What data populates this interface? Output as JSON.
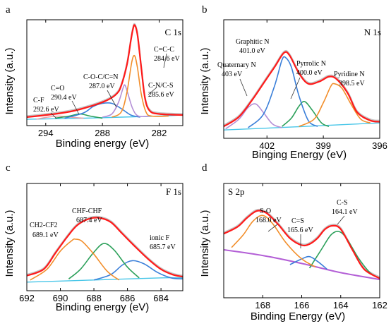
{
  "chart_data": [
    {
      "type": "line",
      "panel_letter": "a",
      "title": "C 1s",
      "xlabel": "Binding energy (eV)",
      "ylabel": "Intensity (a.u.)",
      "xlim": [
        296,
        279.5
      ],
      "ylim": [
        0,
        1
      ],
      "x_ticks": [
        294,
        288,
        282
      ],
      "x_tick_labels": [
        "294",
        "288",
        "282"
      ],
      "background": [
        [
          296,
          0.06
        ],
        [
          290,
          0.07
        ],
        [
          286,
          0.08
        ],
        [
          282,
          0.09
        ],
        [
          279.5,
          0.1
        ]
      ],
      "series": [
        {
          "color": "#ff1a1a",
          "values": [
            [
              296,
              0.08
            ],
            [
              293,
              0.11
            ],
            [
              291,
              0.14
            ],
            [
              289,
              0.19
            ],
            [
              287.5,
              0.24
            ],
            [
              286.5,
              0.3
            ],
            [
              286,
              0.38
            ],
            [
              285.4,
              0.58
            ],
            [
              285,
              0.8
            ],
            [
              284.8,
              0.9
            ],
            [
              284.6,
              0.95
            ],
            [
              284.3,
              0.86
            ],
            [
              283.9,
              0.55
            ],
            [
              283.5,
              0.26
            ],
            [
              283,
              0.14
            ],
            [
              282,
              0.11
            ],
            [
              279.5,
              0.1
            ]
          ]
        },
        {
          "color": "#f28e2b",
          "values": [
            [
              287,
              0.08
            ],
            [
              286,
              0.13
            ],
            [
              285.4,
              0.32
            ],
            [
              284.9,
              0.6
            ],
            [
              284.6,
              0.66
            ],
            [
              284.3,
              0.55
            ],
            [
              283.9,
              0.3
            ],
            [
              283.4,
              0.13
            ],
            [
              282.8,
              0.09
            ],
            [
              281,
              0.09
            ]
          ]
        },
        {
          "color": "#b48fd6",
          "values": [
            [
              288,
              0.08
            ],
            [
              287,
              0.11
            ],
            [
              286.3,
              0.22
            ],
            [
              285.8,
              0.36
            ],
            [
              285.6,
              0.38
            ],
            [
              285.3,
              0.3
            ],
            [
              284.8,
              0.16
            ],
            [
              284.2,
              0.09
            ],
            [
              283,
              0.09
            ]
          ]
        },
        {
          "color": "#3a7fd9",
          "values": [
            [
              292,
              0.07
            ],
            [
              290,
              0.12
            ],
            [
              289,
              0.18
            ],
            [
              288,
              0.21
            ],
            [
              287,
              0.21
            ],
            [
              286,
              0.16
            ],
            [
              285,
              0.1
            ],
            [
              284,
              0.08
            ]
          ]
        },
        {
          "color": "#2ca05a",
          "values": [
            [
              293,
              0.07
            ],
            [
              291.5,
              0.09
            ],
            [
              290.4,
              0.11
            ],
            [
              289.3,
              0.09
            ],
            [
              288,
              0.07
            ]
          ]
        },
        {
          "color": "#e8a0a8",
          "values": [
            [
              295,
              0.06
            ],
            [
              293.8,
              0.08
            ],
            [
              292.6,
              0.09
            ],
            [
              291.4,
              0.08
            ],
            [
              290,
              0.07
            ]
          ]
        }
      ],
      "annotations": [
        {
          "label": "C=C-C",
          "value": "284.6 eV"
        },
        {
          "label": "C-N/C-S",
          "value": "285.6 eV"
        },
        {
          "label": "C-O-C/C=N",
          "value": "287.0 eV"
        },
        {
          "label": "C=O",
          "value": "290.4 eV"
        },
        {
          "label": "C-F",
          "value": "292.6 eV"
        }
      ]
    },
    {
      "type": "line",
      "panel_letter": "b",
      "title": "N 1s",
      "xlabel": "Binging Energy (eV)",
      "ylabel": "Intensity (a.u.)",
      "xlim": [
        404.3,
        396
      ],
      "ylim": [
        0,
        1
      ],
      "x_ticks": [
        402,
        399,
        396
      ],
      "x_tick_labels": [
        "402",
        "399",
        "396"
      ],
      "background": [
        [
          404.3,
          0.07
        ],
        [
          400,
          0.1
        ],
        [
          396,
          0.13
        ]
      ],
      "series": [
        {
          "color": "#ff1a1a",
          "values": [
            [
              404.3,
              0.1
            ],
            [
              403.5,
              0.18
            ],
            [
              402.8,
              0.32
            ],
            [
              402.2,
              0.46
            ],
            [
              401.6,
              0.6
            ],
            [
              401.1,
              0.72
            ],
            [
              400.8,
              0.7
            ],
            [
              400.3,
              0.55
            ],
            [
              399.8,
              0.46
            ],
            [
              399.2,
              0.48
            ],
            [
              398.7,
              0.52
            ],
            [
              398.3,
              0.5
            ],
            [
              397.7,
              0.38
            ],
            [
              397.2,
              0.22
            ],
            [
              396.5,
              0.15
            ],
            [
              396,
              0.14
            ]
          ]
        },
        {
          "color": "#f28e2b",
          "values": [
            [
              400.3,
              0.1
            ],
            [
              399.5,
              0.16
            ],
            [
              399,
              0.3
            ],
            [
              398.6,
              0.44
            ],
            [
              398.4,
              0.46
            ],
            [
              398,
              0.42
            ],
            [
              397.5,
              0.28
            ],
            [
              397,
              0.16
            ],
            [
              396.5,
              0.13
            ]
          ]
        },
        {
          "color": "#3a7fd9",
          "values": [
            [
              403,
              0.09
            ],
            [
              402.2,
              0.2
            ],
            [
              401.6,
              0.44
            ],
            [
              401.2,
              0.66
            ],
            [
              401,
              0.68
            ],
            [
              400.7,
              0.6
            ],
            [
              400.3,
              0.36
            ],
            [
              399.8,
              0.15
            ],
            [
              399.3,
              0.1
            ]
          ]
        },
        {
          "color": "#2ca05a",
          "values": [
            [
              401.2,
              0.1
            ],
            [
              400.7,
              0.17
            ],
            [
              400.3,
              0.27
            ],
            [
              400,
              0.31
            ],
            [
              399.6,
              0.24
            ],
            [
              399.1,
              0.13
            ],
            [
              398.7,
              0.1
            ]
          ]
        },
        {
          "color": "#b48fd6",
          "values": [
            [
              404.2,
              0.08
            ],
            [
              403.5,
              0.16
            ],
            [
              403,
              0.26
            ],
            [
              402.6,
              0.29
            ],
            [
              402.2,
              0.22
            ],
            [
              401.7,
              0.12
            ],
            [
              401.2,
              0.09
            ]
          ]
        }
      ],
      "annotations": [
        {
          "label": "Graphitic N",
          "value": "401.0 eV"
        },
        {
          "label": "Quaternary N",
          "value": "403 eV"
        },
        {
          "label": "Pyrrolic N",
          "value": "400.0 eV"
        },
        {
          "label": "Pyridine N",
          "value": "398.5 eV"
        }
      ]
    },
    {
      "type": "line",
      "panel_letter": "c",
      "title": "F 1s",
      "xlabel": "Binding energy (eV)",
      "ylabel": "Intensity (a.u.)",
      "xlim": [
        692,
        682.7
      ],
      "ylim": [
        0,
        1
      ],
      "x_ticks": [
        692,
        690,
        688,
        686,
        684
      ],
      "x_tick_labels": [
        "692",
        "690",
        "688",
        "686",
        "684"
      ],
      "background": [
        [
          692,
          0.08
        ],
        [
          688,
          0.1
        ],
        [
          684,
          0.12
        ],
        [
          682.7,
          0.12
        ]
      ],
      "series": [
        {
          "color": "#ff1a1a",
          "values": [
            [
              692,
              0.14
            ],
            [
              691,
              0.2
            ],
            [
              690.3,
              0.35
            ],
            [
              689.6,
              0.5
            ],
            [
              689,
              0.61
            ],
            [
              688.3,
              0.67
            ],
            [
              687.7,
              0.68
            ],
            [
              687,
              0.64
            ],
            [
              686.3,
              0.53
            ],
            [
              685.6,
              0.42
            ],
            [
              684.8,
              0.3
            ],
            [
              684,
              0.2
            ],
            [
              683.3,
              0.15
            ],
            [
              682.7,
              0.13
            ]
          ]
        },
        {
          "color": "#f28e2b",
          "values": [
            [
              691.8,
              0.1
            ],
            [
              690.8,
              0.2
            ],
            [
              690,
              0.37
            ],
            [
              689.3,
              0.47
            ],
            [
              689.1,
              0.48
            ],
            [
              688.7,
              0.46
            ],
            [
              688,
              0.34
            ],
            [
              687.2,
              0.18
            ],
            [
              686.5,
              0.1
            ]
          ]
        },
        {
          "color": "#2ca05a",
          "values": [
            [
              689.5,
              0.11
            ],
            [
              688.8,
              0.2
            ],
            [
              688,
              0.36
            ],
            [
              687.4,
              0.44
            ],
            [
              686.8,
              0.38
            ],
            [
              686,
              0.22
            ],
            [
              685.3,
              0.12
            ]
          ]
        },
        {
          "color": "#3a7fd9",
          "values": [
            [
              688,
              0.1
            ],
            [
              687,
              0.15
            ],
            [
              686.3,
              0.24
            ],
            [
              685.7,
              0.28
            ],
            [
              685,
              0.25
            ],
            [
              684.2,
              0.17
            ],
            [
              683.4,
              0.12
            ],
            [
              682.7,
              0.11
            ]
          ]
        }
      ],
      "annotations": [
        {
          "label": "CHF-CHF",
          "value": "687.4 eV"
        },
        {
          "label": "CH2-CF2",
          "value": "689.1 eV"
        },
        {
          "label": "ionic F",
          "value": "685.7 eV"
        }
      ]
    },
    {
      "type": "line",
      "panel_letter": "d",
      "title": "S 2p",
      "xlabel": "Binding Energy (eV)",
      "ylabel": "Intensity (a.u.)",
      "xlim": [
        170,
        162
      ],
      "ylim": [
        0,
        1
      ],
      "x_ticks": [
        168,
        166,
        164,
        162
      ],
      "x_tick_labels": [
        "168",
        "166",
        "164",
        "162"
      ],
      "background": [
        [
          170,
          0.42
        ],
        [
          168,
          0.37
        ],
        [
          166,
          0.3
        ],
        [
          164,
          0.22
        ],
        [
          162,
          0.16
        ]
      ],
      "series": [
        {
          "color": "#ff1a1a",
          "values": [
            [
              170,
              0.56
            ],
            [
              169.3,
              0.62
            ],
            [
              168.8,
              0.7
            ],
            [
              168.3,
              0.76
            ],
            [
              167.8,
              0.74
            ],
            [
              167.2,
              0.64
            ],
            [
              166.6,
              0.52
            ],
            [
              166,
              0.46
            ],
            [
              165.6,
              0.47
            ],
            [
              165.2,
              0.52
            ],
            [
              164.8,
              0.6
            ],
            [
              164.4,
              0.63
            ],
            [
              164,
              0.6
            ],
            [
              163.4,
              0.42
            ],
            [
              162.8,
              0.25
            ],
            [
              162,
              0.17
            ]
          ]
        },
        {
          "color": "#f28e2b",
          "values": [
            [
              169.6,
              0.44
            ],
            [
              169,
              0.55
            ],
            [
              168.5,
              0.67
            ],
            [
              168,
              0.72
            ],
            [
              167.5,
              0.65
            ],
            [
              166.8,
              0.48
            ],
            [
              166,
              0.34
            ],
            [
              165.3,
              0.27
            ]
          ]
        },
        {
          "color": "#3a7fd9",
          "values": [
            [
              166.6,
              0.29
            ],
            [
              166,
              0.34
            ],
            [
              165.6,
              0.36
            ],
            [
              165.2,
              0.32
            ],
            [
              164.7,
              0.25
            ]
          ]
        },
        {
          "color": "#2ca05a",
          "values": [
            [
              165.6,
              0.26
            ],
            [
              165,
              0.42
            ],
            [
              164.5,
              0.55
            ],
            [
              164.1,
              0.58
            ],
            [
              163.7,
              0.52
            ],
            [
              163.1,
              0.35
            ],
            [
              162.5,
              0.22
            ],
            [
              162,
              0.17
            ]
          ]
        }
      ],
      "annotations": [
        {
          "label": "S-O",
          "value": "168.0 eV"
        },
        {
          "label": "C=S",
          "value": "165.6 eV"
        },
        {
          "label": "C-S",
          "value": "164.1 eV"
        }
      ]
    }
  ]
}
